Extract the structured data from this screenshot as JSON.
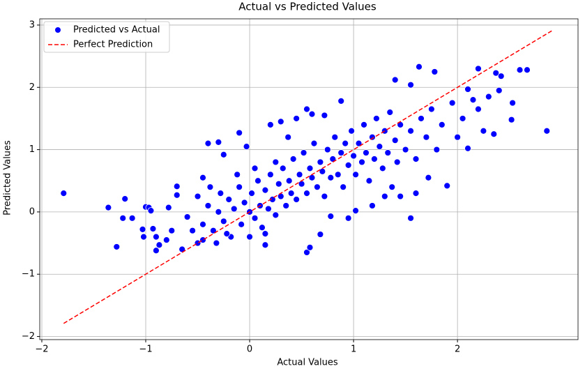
{
  "chart_data": {
    "type": "scatter",
    "title": "Actual vs Predicted Values",
    "x_label": "Actual Values",
    "y_label": "Predicted Values",
    "xlim": [
      -2.02,
      3.16
    ],
    "ylim": [
      -2.05,
      3.1
    ],
    "xticks": [
      {
        "value": -2,
        "label": "−2"
      },
      {
        "value": -1,
        "label": "−1"
      },
      0,
      1,
      2
    ],
    "yticks": [
      {
        "value": -2,
        "label": "−2"
      },
      {
        "value": -1,
        "label": "−1"
      },
      0,
      1,
      2,
      3
    ],
    "grid": true,
    "legend": "upper-left",
    "series": [
      {
        "name": "Predicted vs Actual",
        "type": "scatter",
        "color": "#0000ff",
        "x": [
          -1.79,
          -1.36,
          -1.28,
          -1.2,
          -1.22,
          -1.13,
          -1.03,
          -1.02,
          -1.0,
          -0.97,
          -0.95,
          -0.93,
          -0.9,
          -0.9,
          -0.87,
          -0.8,
          -0.78,
          -0.75,
          -0.7,
          -0.7,
          -0.65,
          -0.6,
          -0.55,
          -0.5,
          -0.45,
          -0.4,
          -0.3,
          -0.25,
          -0.1,
          -0.03,
          0.0,
          0.15,
          0.55,
          0.58,
          0.68,
          0.78,
          0.95,
          1.02,
          1.18,
          1.3,
          1.37,
          1.45,
          1.55,
          1.6,
          1.72,
          1.9,
          2.1,
          2.25,
          2.35,
          2.52,
          2.86,
          2.6,
          2.67,
          2.53,
          2.37,
          2.42,
          2.2,
          2.1,
          1.63,
          1.78,
          1.4,
          1.55,
          0.55,
          0.6,
          0.72,
          0.88,
          0.45,
          0.2,
          0.3,
          0.37,
          -0.45,
          -0.4,
          -0.35,
          -0.3,
          -0.28,
          -0.25,
          -0.2,
          -0.18,
          -0.15,
          -0.1,
          -0.08,
          -0.05,
          0.0,
          0.02,
          0.05,
          0.08,
          0.1,
          0.12,
          0.15,
          0.18,
          0.2,
          0.22,
          0.25,
          0.28,
          0.3,
          0.32,
          0.35,
          0.38,
          0.4,
          0.42,
          0.45,
          0.48,
          0.5,
          0.52,
          0.55,
          0.58,
          0.6,
          0.62,
          0.65,
          0.68,
          0.7,
          0.72,
          0.75,
          0.78,
          0.8,
          0.82,
          0.85,
          0.88,
          0.9,
          0.92,
          0.95,
          0.98,
          1.0,
          1.02,
          1.05,
          1.08,
          1.1,
          1.12,
          1.15,
          1.18,
          1.2,
          1.22,
          1.25,
          1.28,
          1.3,
          1.33,
          1.35,
          1.4,
          1.42,
          1.45,
          1.5,
          1.55,
          1.6,
          1.65,
          1.7,
          1.75,
          1.8,
          1.85,
          1.95,
          2.0,
          2.05,
          2.15,
          2.2,
          2.3,
          2.4,
          -0.5,
          -0.45,
          -0.38,
          -0.32,
          -0.22,
          -0.12,
          0.05,
          0.15,
          0.25
        ],
        "values": [
          0.3,
          0.07,
          -0.56,
          0.21,
          -0.1,
          -0.1,
          -0.28,
          -0.4,
          0.08,
          0.07,
          0.02,
          -0.27,
          -0.4,
          -0.62,
          -0.53,
          -0.45,
          0.07,
          -0.3,
          0.27,
          0.41,
          -0.6,
          -0.08,
          -0.3,
          -0.5,
          0.55,
          1.1,
          1.12,
          0.92,
          1.27,
          1.05,
          -0.4,
          -0.53,
          -0.65,
          -0.57,
          -0.36,
          -0.07,
          -0.1,
          0.02,
          0.1,
          0.25,
          0.4,
          0.25,
          -0.1,
          0.3,
          0.55,
          0.42,
          1.02,
          1.3,
          1.25,
          1.48,
          1.3,
          2.28,
          2.28,
          1.75,
          2.23,
          2.18,
          2.3,
          1.97,
          2.33,
          2.25,
          2.12,
          2.04,
          1.65,
          1.57,
          1.55,
          1.78,
          1.5,
          1.4,
          1.45,
          1.2,
          -0.2,
          0.1,
          -0.3,
          0.0,
          0.3,
          -0.15,
          0.2,
          -0.4,
          0.05,
          0.4,
          -0.2,
          0.15,
          0.0,
          0.3,
          -0.1,
          0.5,
          0.1,
          -0.25,
          0.35,
          0.05,
          0.6,
          0.2,
          -0.05,
          0.45,
          0.25,
          0.7,
          0.1,
          0.5,
          0.3,
          0.85,
          0.2,
          0.6,
          0.45,
          0.95,
          0.3,
          0.7,
          0.55,
          1.1,
          0.4,
          0.8,
          0.65,
          0.25,
          1.0,
          0.55,
          0.85,
          1.2,
          0.6,
          0.95,
          0.4,
          1.1,
          0.75,
          1.3,
          0.9,
          0.6,
          1.1,
          0.8,
          1.4,
          0.95,
          0.5,
          1.2,
          0.85,
          1.5,
          1.05,
          0.7,
          1.3,
          0.95,
          1.6,
          1.15,
          0.8,
          1.4,
          1.0,
          1.3,
          0.85,
          1.5,
          1.2,
          1.65,
          1.0,
          1.4,
          1.75,
          1.2,
          1.5,
          1.8,
          1.65,
          1.85,
          1.95,
          0.25,
          -0.45,
          0.4,
          -0.5,
          -0.35,
          0.6,
          0.7,
          -0.35,
          0.8
        ]
      },
      {
        "name": "Perfect Prediction",
        "type": "line",
        "color": "#ff0000",
        "x": [
          -1.79,
          2.91
        ],
        "values": [
          -1.79,
          2.91
        ]
      }
    ]
  }
}
